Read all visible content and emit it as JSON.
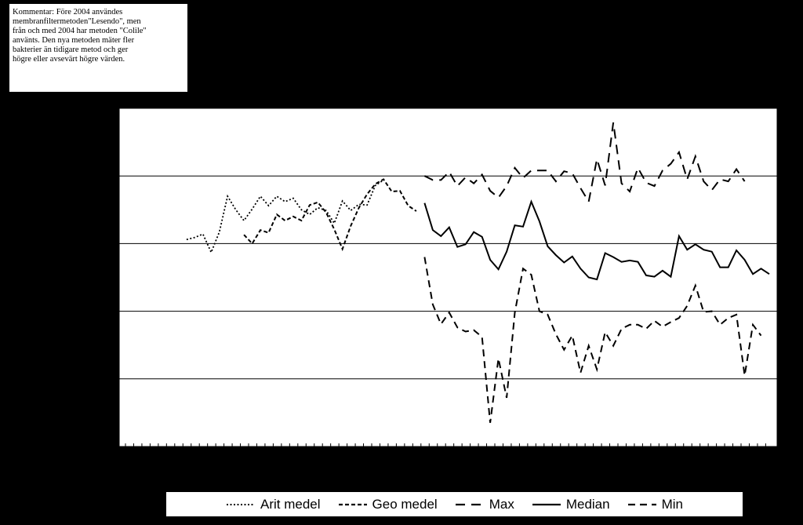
{
  "comment": {
    "text": "Kommentar: Före 2004 användes\n membranfiltermetoden\"Lesendo\", men\nfrån och med 2004 har metoden \"Colile\"\nanvänts.  Den nya metoden mäter fler\nbakterier än tidigare metod och ger\nhögre eller avsevärt högre värden."
  },
  "colors": {
    "background": "#000000",
    "plot": "#ffffff",
    "line": "#000000",
    "grid": "#000000"
  },
  "chart_data": {
    "type": "line",
    "title": "",
    "xlabel": "",
    "ylabel": "",
    "ylim": [
      0,
      5
    ],
    "yticks": [
      1,
      2,
      3,
      4
    ],
    "grid": true,
    "legend_position": "bottom",
    "x_count": 76,
    "series": [
      {
        "name": "Arit medel",
        "dash": "dotted",
        "start": 4,
        "values": [
          3.06,
          3.09,
          3.14,
          2.87,
          3.17,
          3.7,
          3.5,
          3.34,
          3.51,
          3.7,
          3.56,
          3.7,
          3.62,
          3.67,
          3.5,
          3.43,
          3.53,
          3.49,
          3.3,
          3.63,
          3.49,
          3.58,
          3.57,
          3.86,
          3.94
        ]
      },
      {
        "name": "Geo medel",
        "dash": "short",
        "start": 11,
        "values": [
          3.13,
          3.0,
          3.2,
          3.16,
          3.43,
          3.34,
          3.4,
          3.34,
          3.57,
          3.61,
          3.46,
          3.21,
          2.92,
          3.26,
          3.53,
          3.73,
          3.88,
          3.95,
          3.77,
          3.78,
          3.56,
          3.48
        ]
      },
      {
        "name": "Max",
        "dash": "long",
        "start": 33,
        "values": [
          4.0,
          3.94,
          3.94,
          4.06,
          3.85,
          3.98,
          3.89,
          4.02,
          3.78,
          3.68,
          3.85,
          4.12,
          3.97,
          4.08,
          4.08,
          4.08,
          3.92,
          4.07,
          4.04,
          3.82,
          3.62,
          4.25,
          3.86,
          4.79,
          3.89,
          3.77,
          4.12,
          3.9,
          3.85,
          4.08,
          4.18,
          4.35,
          3.95,
          4.29,
          3.92,
          3.79,
          3.95,
          3.92,
          4.1,
          3.92
        ]
      },
      {
        "name": "Median",
        "dash": "solid",
        "start": 33,
        "values": [
          3.6,
          3.2,
          3.11,
          3.24,
          2.95,
          2.99,
          3.17,
          3.1,
          2.76,
          2.62,
          2.88,
          3.27,
          3.25,
          3.62,
          3.33,
          2.96,
          2.83,
          2.72,
          2.81,
          2.63,
          2.5,
          2.47,
          2.86,
          2.8,
          2.73,
          2.75,
          2.73,
          2.53,
          2.51,
          2.6,
          2.51,
          3.11,
          2.91,
          2.99,
          2.91,
          2.88,
          2.65,
          2.65,
          2.9,
          2.76,
          2.55,
          2.63,
          2.55
        ]
      },
      {
        "name": "Min",
        "dash": "dashed",
        "start": 33,
        "values": [
          2.8,
          2.1,
          1.81,
          1.98,
          1.76,
          1.7,
          1.72,
          1.62,
          0.35,
          1.3,
          0.72,
          1.98,
          2.63,
          2.54,
          2.0,
          1.95,
          1.66,
          1.43,
          1.64,
          1.09,
          1.49,
          1.14,
          1.69,
          1.49,
          1.74,
          1.8,
          1.8,
          1.74,
          1.86,
          1.77,
          1.84,
          1.9,
          2.08,
          2.38,
          1.99,
          2.0,
          1.8,
          1.9,
          1.95,
          1.05,
          1.8,
          1.64
        ]
      }
    ]
  },
  "legend": {
    "items": [
      {
        "label": "Arit medel",
        "dash": "dotted"
      },
      {
        "label": "Geo medel",
        "dash": "short"
      },
      {
        "label": "Max",
        "dash": "long"
      },
      {
        "label": "Median",
        "dash": "solid"
      },
      {
        "label": "Min",
        "dash": "dashed"
      }
    ]
  }
}
